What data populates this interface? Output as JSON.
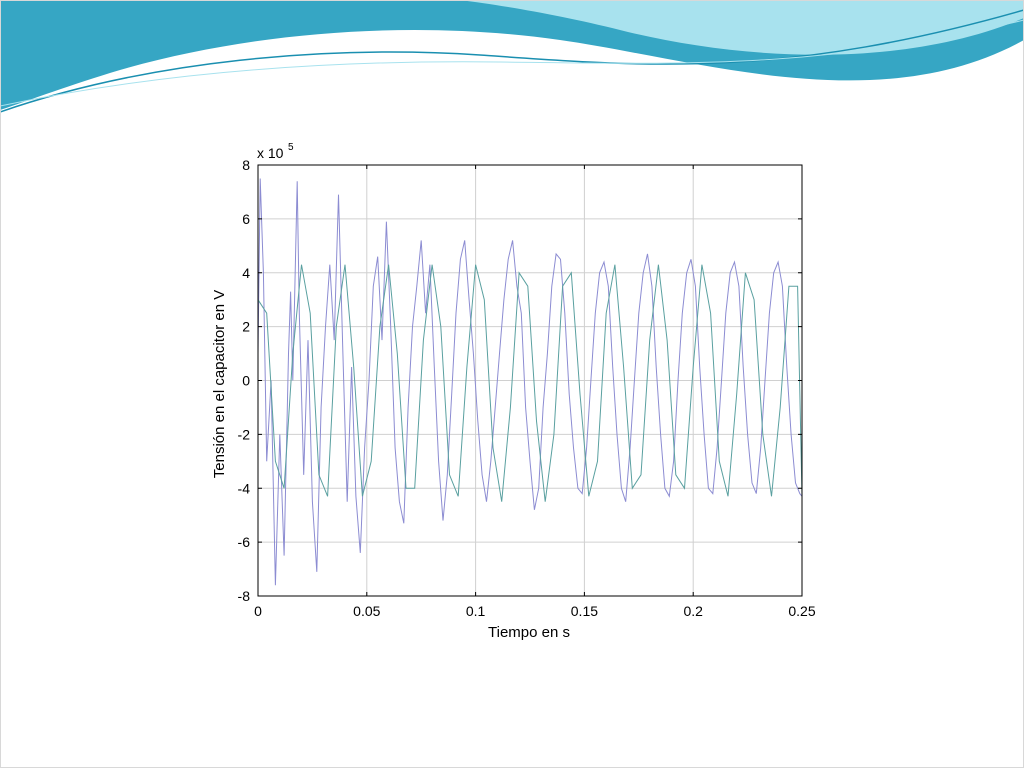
{
  "colors": {
    "wave_dark": "#36a6c4",
    "wave_light": "#a8e2ee",
    "wave_line": "#1a8fb0",
    "series_1": "#8c8cd2",
    "series_2": "#5aa0a0",
    "grid": "#d0d0d0",
    "axis": "#000000"
  },
  "chart_data": {
    "type": "line",
    "title": "",
    "xlabel": "Tiempo en s",
    "ylabel": "Tensión en el capacitor en V",
    "y_multiplier_base": "x 10",
    "y_multiplier_exponent": "5",
    "xlim": [
      0,
      0.25
    ],
    "ylim": [
      -8,
      8
    ],
    "x_ticks": [
      0,
      0.05,
      0.1,
      0.15,
      0.2,
      0.25
    ],
    "x_tick_labels": [
      "0",
      "0.05",
      "0.1",
      "0.15",
      "0.2",
      "0.25"
    ],
    "y_ticks": [
      -8,
      -6,
      -4,
      -2,
      0,
      2,
      4,
      6,
      8
    ],
    "y_tick_labels": [
      "-8",
      "-6",
      "-4",
      "-2",
      "0",
      "2",
      "4",
      "6",
      "8"
    ],
    "grid": true,
    "series": [
      {
        "color": "#8c8cd2",
        "x": [
          0,
          0.001,
          0.0025,
          0.004,
          0.006,
          0.008,
          0.01,
          0.012,
          0.014,
          0.015,
          0.016,
          0.018,
          0.019,
          0.021,
          0.023,
          0.025,
          0.027,
          0.029,
          0.031,
          0.033,
          0.035,
          0.037,
          0.039,
          0.041,
          0.043,
          0.045,
          0.047,
          0.049,
          0.051,
          0.053,
          0.055,
          0.057,
          0.059,
          0.061,
          0.063,
          0.065,
          0.067,
          0.069,
          0.071,
          0.073,
          0.075,
          0.077,
          0.079,
          0.081,
          0.083,
          0.085,
          0.087,
          0.089,
          0.091,
          0.093,
          0.095,
          0.097,
          0.099,
          0.101,
          0.103,
          0.105,
          0.107,
          0.109,
          0.111,
          0.113,
          0.115,
          0.117,
          0.119,
          0.121,
          0.123,
          0.125,
          0.127,
          0.129,
          0.131,
          0.133,
          0.135,
          0.137,
          0.139,
          0.141,
          0.143,
          0.145,
          0.147,
          0.149,
          0.151,
          0.153,
          0.155,
          0.157,
          0.159,
          0.161,
          0.163,
          0.165,
          0.167,
          0.169,
          0.171,
          0.173,
          0.175,
          0.177,
          0.179,
          0.181,
          0.183,
          0.185,
          0.187,
          0.189,
          0.191,
          0.193,
          0.195,
          0.197,
          0.199,
          0.201,
          0.203,
          0.205,
          0.207,
          0.209,
          0.211,
          0.213,
          0.215,
          0.217,
          0.219,
          0.221,
          0.223,
          0.225,
          0.227,
          0.229,
          0.231,
          0.233,
          0.235,
          0.237,
          0.239,
          0.241,
          0.243,
          0.245,
          0.247,
          0.249,
          0.25
        ],
        "y": [
          1.0,
          7.5,
          4.0,
          -3.0,
          0.0,
          -7.6,
          -2.0,
          -6.5,
          1.0,
          3.3,
          0.0,
          7.4,
          2.5,
          -3.5,
          1.5,
          -4.5,
          -7.1,
          -1.0,
          2.0,
          4.3,
          1.5,
          6.9,
          1.0,
          -4.5,
          0.5,
          -4.3,
          -6.4,
          -2.5,
          0.0,
          3.5,
          4.6,
          1.5,
          5.9,
          2.0,
          -2.5,
          -4.5,
          -5.3,
          -1.0,
          2.0,
          3.5,
          5.2,
          2.5,
          4.3,
          0.5,
          -3.0,
          -5.2,
          -3.5,
          -0.5,
          2.5,
          4.5,
          5.2,
          3.0,
          1.0,
          -1.5,
          -3.5,
          -4.5,
          -3.0,
          -1.0,
          1.0,
          3.0,
          4.5,
          5.2,
          3.5,
          2.5,
          -1.0,
          -3.0,
          -4.8,
          -4.0,
          -1.0,
          1.0,
          3.5,
          4.7,
          4.5,
          2.5,
          -0.5,
          -2.5,
          -4.0,
          -4.2,
          -2.5,
          0.0,
          2.5,
          4.0,
          4.4,
          3.5,
          0.5,
          -2.0,
          -4.0,
          -4.5,
          -2.5,
          0.0,
          2.5,
          4.0,
          4.7,
          3.5,
          0.5,
          -2.0,
          -4.0,
          -4.3,
          -3.0,
          0.0,
          2.5,
          4.0,
          4.5,
          3.5,
          0.5,
          -2.0,
          -4.0,
          -4.2,
          -2.5,
          0.0,
          2.5,
          4.0,
          4.4,
          3.5,
          0.5,
          -2.0,
          -3.8,
          -4.2,
          -2.5,
          0.0,
          2.5,
          4.0,
          4.4,
          3.5,
          0.5,
          -2.0,
          -3.8,
          -4.2,
          -4.3
        ]
      },
      {
        "color": "#5aa0a0",
        "x": [
          0,
          0.004,
          0.008,
          0.012,
          0.016,
          0.02,
          0.024,
          0.028,
          0.032,
          0.036,
          0.04,
          0.044,
          0.048,
          0.052,
          0.056,
          0.06,
          0.064,
          0.068,
          0.072,
          0.076,
          0.08,
          0.084,
          0.088,
          0.092,
          0.096,
          0.1,
          0.104,
          0.108,
          0.112,
          0.116,
          0.12,
          0.124,
          0.128,
          0.132,
          0.136,
          0.14,
          0.144,
          0.148,
          0.152,
          0.156,
          0.16,
          0.164,
          0.168,
          0.172,
          0.176,
          0.18,
          0.184,
          0.188,
          0.192,
          0.196,
          0.2,
          0.204,
          0.208,
          0.212,
          0.216,
          0.22,
          0.224,
          0.228,
          0.232,
          0.236,
          0.24,
          0.244,
          0.248,
          0.25
        ],
        "y": [
          3.0,
          2.5,
          -3.0,
          -4.0,
          1.0,
          4.3,
          2.5,
          -3.5,
          -4.3,
          2.0,
          4.3,
          0.5,
          -4.3,
          -3.0,
          2.0,
          4.3,
          1.0,
          -4.0,
          -4.0,
          1.5,
          4.3,
          2.0,
          -3.5,
          -4.3,
          0.5,
          4.3,
          3.0,
          -2.5,
          -4.5,
          -1.0,
          4.0,
          3.5,
          -1.5,
          -4.5,
          -2.0,
          3.5,
          4.0,
          -0.5,
          -4.3,
          -3.0,
          2.5,
          4.3,
          0.5,
          -4.0,
          -3.5,
          1.5,
          4.3,
          1.5,
          -3.5,
          -4.0,
          0.5,
          4.3,
          2.5,
          -3.0,
          -4.3,
          -0.5,
          4.0,
          3.0,
          -2.0,
          -4.3,
          -1.0,
          3.5,
          3.5,
          -4.3
        ]
      }
    ]
  }
}
